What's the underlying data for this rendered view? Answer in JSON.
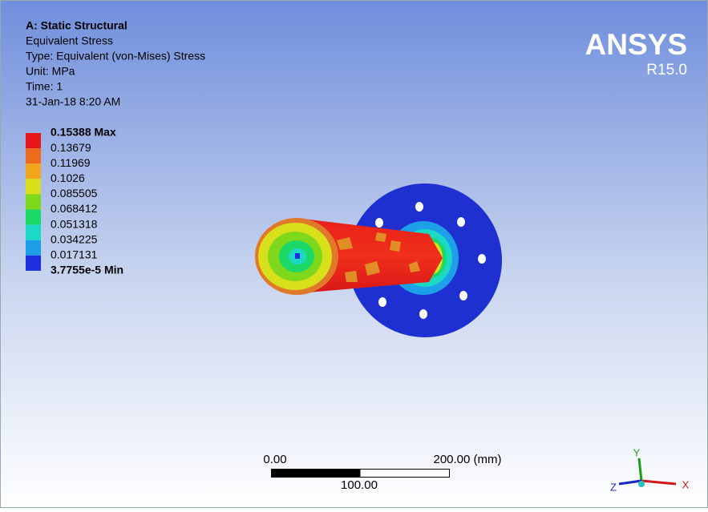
{
  "header": {
    "title": "A: Static Structural",
    "lines": [
      "Equivalent Stress",
      "Type: Equivalent (von-Mises) Stress",
      "Unit: MPa",
      "Time: 1",
      "31-Jan-18 8:20 AM"
    ]
  },
  "legend": {
    "labels": [
      "0.15388 Max",
      "0.13679",
      "0.11969",
      "0.1026",
      "0.085505",
      "0.068412",
      "0.051318",
      "0.034225",
      "0.017131",
      "3.7755e-5 Min"
    ],
    "colors": [
      "#e8181a",
      "#ee6a1c",
      "#f2a61c",
      "#d8e01c",
      "#7ed81c",
      "#1cd866",
      "#1cd8c6",
      "#1c9ee8",
      "#1c2ee0"
    ]
  },
  "logo": {
    "name": "ANSYS",
    "version": "R15.0"
  },
  "scale_bar": {
    "start": "0.00",
    "end": "200.00 (mm)",
    "mid": "100.00"
  },
  "triad": {
    "x": "X",
    "y": "Y",
    "z": "Z"
  }
}
